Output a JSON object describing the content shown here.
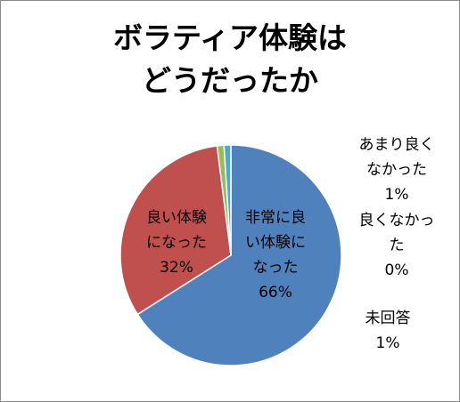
{
  "chart_data": {
    "type": "pie",
    "title_lines": [
      "ボラティア体験は",
      "どうだったか"
    ],
    "slices": [
      {
        "label_lines": [
          "非常に良",
          "い体験に",
          "なった"
        ],
        "percent_text": "66%",
        "value": 66,
        "color": "#4f81bd"
      },
      {
        "label_lines": [
          "良い体験",
          "になった"
        ],
        "percent_text": "32%",
        "value": 32,
        "color": "#c0504d"
      },
      {
        "label_lines": [
          "あまり良く",
          "なかった"
        ],
        "percent_text": "1%",
        "value": 1,
        "color": "#9bbb59"
      },
      {
        "label_lines": [
          "良くなかっ",
          "た"
        ],
        "percent_text": "0%",
        "value": 0,
        "color": "#8064a2"
      },
      {
        "label_lines": [
          "未回答"
        ],
        "percent_text": "1%",
        "value": 1,
        "color": "#4bacc6"
      }
    ]
  }
}
